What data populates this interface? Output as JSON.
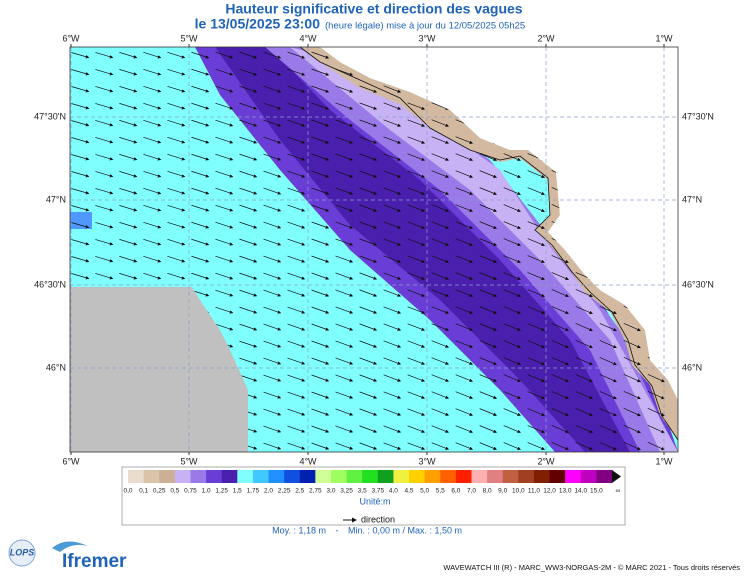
{
  "header": {
    "title": "Hauteur significative et direction des vagues",
    "date": "le 13/05/2025 23:00",
    "note": "(heure légale) mise à jour du 12/05/2025 05h25"
  },
  "map": {
    "lon_labels": [
      "6°W",
      "5°W",
      "4°W",
      "3°W",
      "2°W",
      "1°W"
    ],
    "lat_labels": [
      "47°30'N",
      "47°N",
      "46°30'N",
      "46°N"
    ]
  },
  "legend": {
    "labels": [
      "0,0",
      "0,1",
      "0,25",
      "0,5",
      "0,75",
      "1,0",
      "1,25",
      "1,5",
      "1,75",
      "2,0",
      "2,25",
      "2,5",
      "2,75",
      "3,0",
      "3,25",
      "3,5",
      "3,75",
      "4,0",
      "4,5",
      "5,0",
      "5,5",
      "6,0",
      "7,0",
      "8,0",
      "9,0",
      "10,0",
      "11,0",
      "12,0",
      "13,0",
      "14,0",
      "15,0",
      "∞"
    ],
    "colors": [
      "#eadccc",
      "#d9c3a9",
      "#cbb095",
      "#c6b2f4",
      "#9a7ae8",
      "#6a3ed6",
      "#4b1fae",
      "#80ffff",
      "#40c8ff",
      "#2090ff",
      "#1050e0",
      "#0020b0",
      "#d0ff98",
      "#a0ff60",
      "#60f040",
      "#20e020",
      "#10a020",
      "#f0f040",
      "#ffd000",
      "#ffa000",
      "#ff6000",
      "#ff2000",
      "#ffb0b0",
      "#e08080",
      "#c06040",
      "#a04020",
      "#802000",
      "#600000",
      "#ff00ff",
      "#c000c0",
      "#800080"
    ],
    "unit": "Unité:m",
    "direction": "direction"
  },
  "stats": {
    "mean": "Moy. : 1,18 m",
    "sep": "-",
    "range": "Min. : 0,00 m / Max. : 1,50 m"
  },
  "footer": "WAVEWATCH III (R) - MARC_WW3-NORGAS-2M - © MARC 2021 - Tous droits réservés",
  "logos": {
    "lops": "LOPS",
    "ifremer": "Ifremer"
  }
}
